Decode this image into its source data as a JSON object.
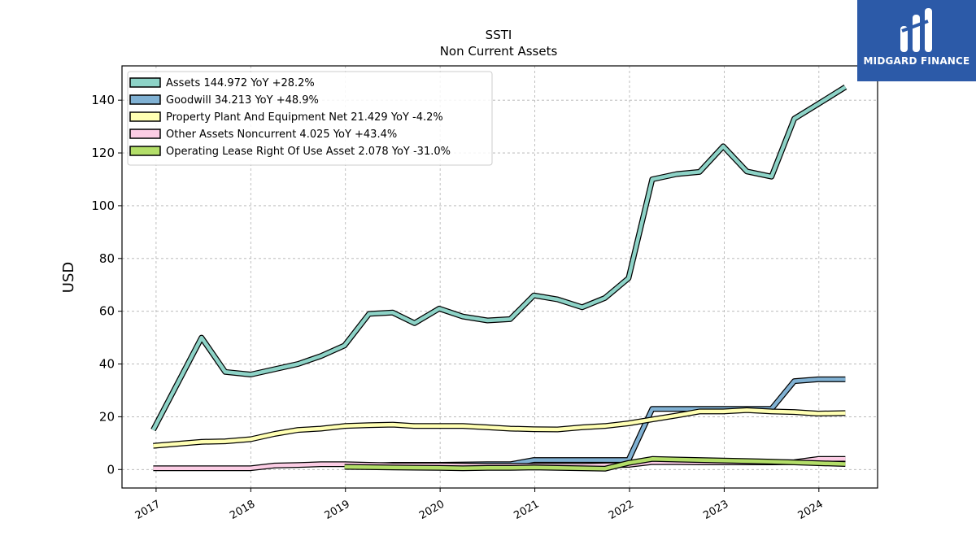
{
  "chart_data": {
    "type": "line",
    "title": "SSTI",
    "subtitle": "Non Current  Assets",
    "ylabel": "USD",
    "xlabel": "",
    "ylim": [
      -7,
      153
    ],
    "yticks": [
      0,
      20,
      40,
      60,
      80,
      100,
      120,
      140
    ],
    "xlim": [
      2016.64,
      2024.62
    ],
    "xticks": [
      2017,
      2018,
      2019,
      2020,
      2021,
      2022,
      2023,
      2024
    ],
    "grid": true,
    "legend_position": "top-left",
    "series": [
      {
        "name": "Assets  144.972 YoY +28.2%",
        "color": "#8dd3c7",
        "points": [
          [
            2016.97,
            15
          ],
          [
            2017.48,
            50
          ],
          [
            2017.73,
            37
          ],
          [
            2018.0,
            36
          ],
          [
            2018.25,
            38
          ],
          [
            2018.5,
            40
          ],
          [
            2018.74,
            43
          ],
          [
            2018.99,
            47
          ],
          [
            2019.25,
            59
          ],
          [
            2019.5,
            59.5
          ],
          [
            2019.73,
            55.5
          ],
          [
            2019.99,
            61
          ],
          [
            2020.24,
            58
          ],
          [
            2020.5,
            56.5
          ],
          [
            2020.74,
            57
          ],
          [
            2020.99,
            66
          ],
          [
            2021.24,
            64.5
          ],
          [
            2021.5,
            61.5
          ],
          [
            2021.74,
            65
          ],
          [
            2021.99,
            72.5
          ],
          [
            2022.24,
            110
          ],
          [
            2022.5,
            112
          ],
          [
            2022.74,
            112.8
          ],
          [
            2022.99,
            122.5
          ],
          [
            2023.24,
            113
          ],
          [
            2023.5,
            111
          ],
          [
            2023.74,
            133
          ],
          [
            2023.99,
            138.5
          ],
          [
            2024.28,
            145
          ]
        ]
      },
      {
        "name": "Goodwill  34.213 YoY +48.9%",
        "color": "#80b1d3",
        "points": [
          [
            2018.99,
            1.2
          ],
          [
            2019.5,
            1.8
          ],
          [
            2020.0,
            1.8
          ],
          [
            2020.5,
            2.0
          ],
          [
            2020.74,
            2.0
          ],
          [
            2020.99,
            3.6
          ],
          [
            2021.24,
            3.6
          ],
          [
            2021.5,
            3.6
          ],
          [
            2021.74,
            3.6
          ],
          [
            2021.99,
            3.6
          ],
          [
            2022.24,
            23
          ],
          [
            2022.5,
            23
          ],
          [
            2022.74,
            23
          ],
          [
            2022.99,
            23
          ],
          [
            2023.24,
            23
          ],
          [
            2023.5,
            23
          ],
          [
            2023.74,
            33.5
          ],
          [
            2023.99,
            34.2
          ],
          [
            2024.28,
            34.2
          ]
        ]
      },
      {
        "name": "Property Plant And Equipment Net  21.429 YoY -4.2%",
        "color": "#ffffb3",
        "points": [
          [
            2016.97,
            9
          ],
          [
            2017.48,
            10.5
          ],
          [
            2017.73,
            10.7
          ],
          [
            2018.0,
            11.5
          ],
          [
            2018.25,
            13.5
          ],
          [
            2018.5,
            15
          ],
          [
            2018.74,
            15.5
          ],
          [
            2018.99,
            16.5
          ],
          [
            2019.25,
            16.8
          ],
          [
            2019.5,
            17
          ],
          [
            2019.73,
            16.5
          ],
          [
            2019.99,
            16.5
          ],
          [
            2020.24,
            16.5
          ],
          [
            2020.5,
            16
          ],
          [
            2020.74,
            15.5
          ],
          [
            2020.99,
            15.3
          ],
          [
            2021.24,
            15.2
          ],
          [
            2021.5,
            16
          ],
          [
            2021.74,
            16.5
          ],
          [
            2021.99,
            17.5
          ],
          [
            2022.24,
            19
          ],
          [
            2022.5,
            20.5
          ],
          [
            2022.74,
            22
          ],
          [
            2022.99,
            22
          ],
          [
            2023.24,
            22.5
          ],
          [
            2023.5,
            22
          ],
          [
            2023.74,
            21.8
          ],
          [
            2023.99,
            21.2
          ],
          [
            2024.28,
            21.4
          ]
        ]
      },
      {
        "name": "Other Assets Noncurrent  4.025 YoY +43.4%",
        "color": "#fccde5",
        "points": [
          [
            2016.97,
            0.5
          ],
          [
            2017.48,
            0.5
          ],
          [
            2017.73,
            0.5
          ],
          [
            2018.0,
            0.5
          ],
          [
            2018.25,
            1.5
          ],
          [
            2018.5,
            1.7
          ],
          [
            2018.74,
            2.0
          ],
          [
            2018.99,
            2.0
          ],
          [
            2019.25,
            1.8
          ],
          [
            2019.5,
            1.6
          ],
          [
            2020.0,
            1.6
          ],
          [
            2020.5,
            1.4
          ],
          [
            2020.99,
            1.4
          ],
          [
            2021.5,
            1.4
          ],
          [
            2021.99,
            1.8
          ],
          [
            2022.24,
            2.8
          ],
          [
            2022.5,
            2.8
          ],
          [
            2022.74,
            2.7
          ],
          [
            2022.99,
            2.7
          ],
          [
            2023.5,
            2.7
          ],
          [
            2023.74,
            2.8
          ],
          [
            2023.99,
            4.0
          ],
          [
            2024.28,
            4.0
          ]
        ]
      },
      {
        "name": "Operating Lease Right Of Use Asset  2.078 YoY -31.0%",
        "color": "#b3de69",
        "points": [
          [
            2018.99,
            1.0
          ],
          [
            2019.5,
            0.8
          ],
          [
            2019.99,
            0.6
          ],
          [
            2020.24,
            0.5
          ],
          [
            2020.5,
            0.6
          ],
          [
            2020.74,
            0.6
          ],
          [
            2020.99,
            0.8
          ],
          [
            2021.24,
            0.6
          ],
          [
            2021.5,
            0.5
          ],
          [
            2021.74,
            0.3
          ],
          [
            2021.99,
            2.5
          ],
          [
            2022.24,
            4.0
          ],
          [
            2022.5,
            3.8
          ],
          [
            2022.74,
            3.6
          ],
          [
            2022.99,
            3.4
          ],
          [
            2023.24,
            3.2
          ],
          [
            2023.5,
            3.0
          ],
          [
            2023.74,
            2.7
          ],
          [
            2023.99,
            2.4
          ],
          [
            2024.28,
            2.1
          ]
        ]
      }
    ]
  },
  "logo": {
    "brand_text": "MIDGARD FINANCE"
  }
}
